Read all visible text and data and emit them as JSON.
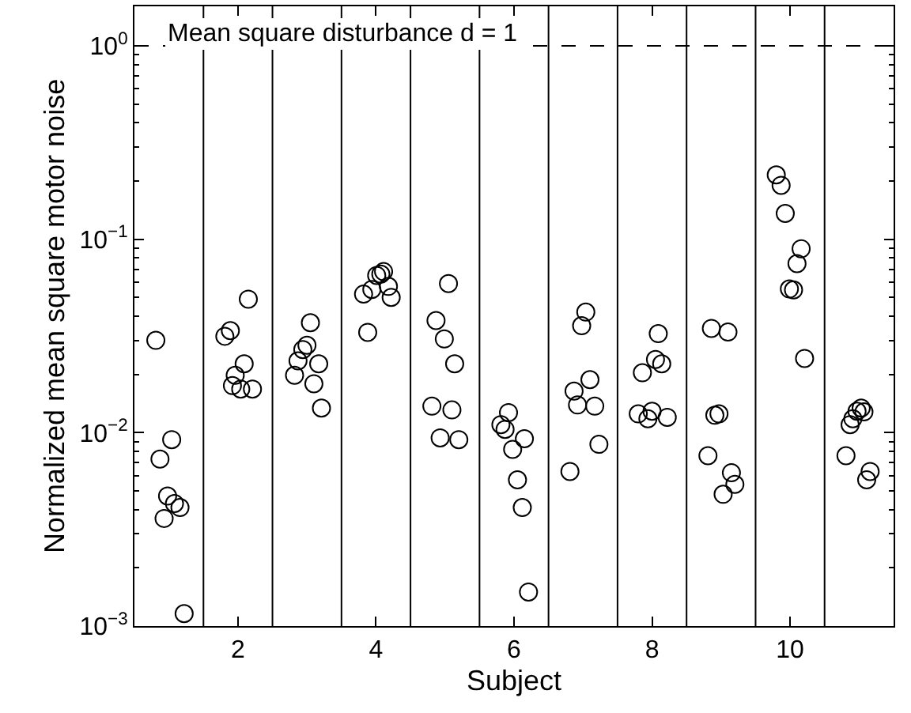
{
  "chart_data": {
    "type": "scatter",
    "xlabel": "Subject",
    "ylabel": "Normalized mean square motor noise",
    "log": "y",
    "marker": "circle",
    "xlim": [
      0.5,
      11.5
    ],
    "xticks": [
      2,
      4,
      6,
      8,
      10
    ],
    "ylim": [
      0.001,
      1.6
    ],
    "yticks": [
      {
        "value": 1,
        "label": "10$^{0}$"
      },
      {
        "value": 0.1,
        "label": "10$^{−1}$"
      },
      {
        "value": 0.01,
        "label": "10$^{−2}$"
      },
      {
        "value": 0.001,
        "label": "10$^{−3}$"
      }
    ],
    "series": [
      {
        "color": "#000000",
        "x": [
          0.81,
          0.87,
          1.04,
          0.98,
          0.93,
          1.08,
          1.16,
          1.22,
          1.81,
          1.89,
          1.96,
          2.09,
          1.92,
          2.04,
          2.21,
          2.15,
          2.82,
          2.87,
          2.94,
          3.0,
          3.05,
          3.17,
          3.1,
          3.21,
          3.82,
          3.88,
          3.94,
          4.01,
          4.07,
          4.11,
          4.18,
          4.22,
          4.87,
          4.99,
          5.05,
          5.14,
          4.81,
          4.93,
          5.1,
          5.2,
          5.81,
          5.87,
          5.92,
          5.98,
          6.15,
          6.05,
          6.12,
          6.21,
          6.81,
          6.87,
          6.92,
          6.98,
          7.04,
          7.1,
          7.17,
          7.23,
          7.8,
          7.86,
          7.94,
          8.0,
          8.05,
          8.09,
          8.14,
          8.22,
          8.81,
          8.86,
          8.91,
          8.97,
          9.03,
          9.1,
          9.15,
          9.2,
          9.8,
          9.87,
          9.93,
          9.99,
          10.05,
          10.1,
          10.16,
          10.21,
          10.81,
          10.87,
          10.91,
          10.97,
          11.03,
          11.07,
          11.11,
          11.16
        ],
        "values": [
          0.03,
          0.0073,
          0.0092,
          0.0047,
          0.0036,
          0.0043,
          0.0041,
          0.00116,
          0.0315,
          0.0337,
          0.0198,
          0.0227,
          0.0175,
          0.0168,
          0.0168,
          0.049,
          0.0198,
          0.0235,
          0.0269,
          0.0283,
          0.037,
          0.0227,
          0.0179,
          0.0134,
          0.052,
          0.033,
          0.055,
          0.065,
          0.066,
          0.068,
          0.057,
          0.05,
          0.038,
          0.0305,
          0.059,
          0.0227,
          0.0137,
          0.0094,
          0.0131,
          0.0092,
          0.011,
          0.0104,
          0.0127,
          0.0082,
          0.0093,
          0.0057,
          0.0041,
          0.0015,
          0.0063,
          0.0164,
          0.0139,
          0.0357,
          0.042,
          0.0188,
          0.0137,
          0.0087,
          0.0125,
          0.0204,
          0.0118,
          0.0129,
          0.0239,
          0.0325,
          0.0227,
          0.012,
          0.0076,
          0.0346,
          0.0123,
          0.0125,
          0.0048,
          0.0331,
          0.0062,
          0.0054,
          0.215,
          0.19,
          0.136,
          0.0553,
          0.0547,
          0.0748,
          0.0893,
          0.0242,
          0.0076,
          0.011,
          0.0118,
          0.0129,
          0.0134,
          0.0128,
          0.0057,
          0.0063
        ]
      }
    ],
    "ref_lines": [
      {
        "axis": "y",
        "value": 1,
        "label": "Mean square disturbance d = 1",
        "line_style": "dashed",
        "color": "#000000"
      },
      {
        "axis": "x",
        "value": 1.5,
        "color": "#000000"
      },
      {
        "axis": "x",
        "value": 2.5,
        "color": "#000000"
      },
      {
        "axis": "x",
        "value": 3.5,
        "color": "#000000"
      },
      {
        "axis": "x",
        "value": 4.5,
        "color": "#000000"
      },
      {
        "axis": "x",
        "value": 5.5,
        "color": "#000000"
      },
      {
        "axis": "x",
        "value": 6.5,
        "color": "#000000"
      },
      {
        "axis": "x",
        "value": 7.5,
        "color": "#000000"
      },
      {
        "axis": "x",
        "value": 8.5,
        "color": "#000000"
      },
      {
        "axis": "x",
        "value": 9.5,
        "color": "#000000"
      },
      {
        "axis": "x",
        "value": 10.5,
        "color": "#000000"
      }
    ]
  }
}
